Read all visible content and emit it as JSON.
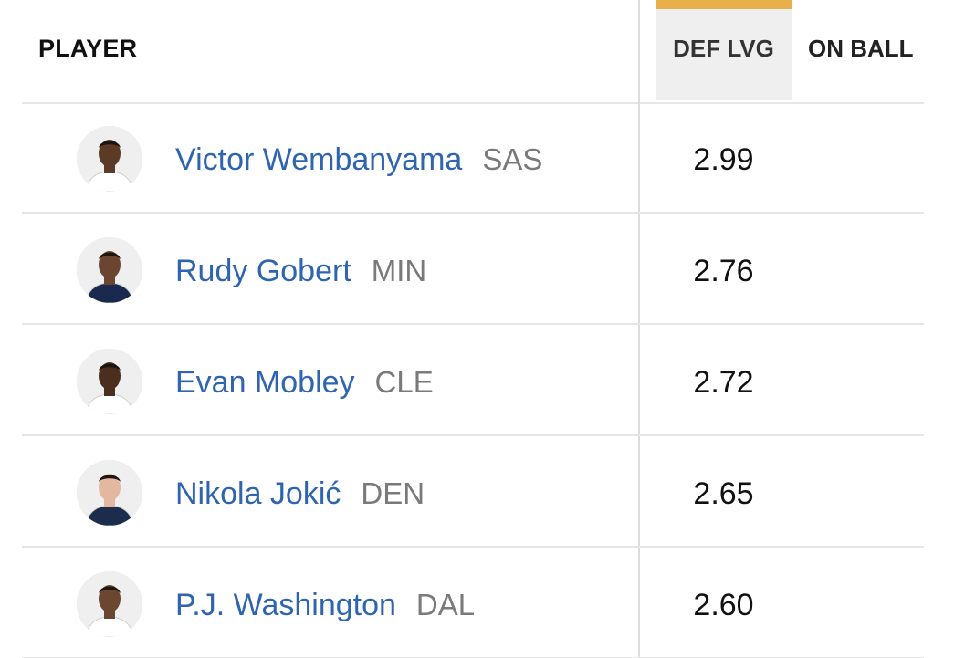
{
  "header": {
    "player": "PLAYER",
    "def_lvg": "DEF LVG",
    "on_ball": "ON BALL"
  },
  "colors": {
    "accent": "#e8b04a",
    "link": "#2f65b0",
    "team": "#7a7a7a"
  },
  "rows": [
    {
      "name": "Victor Wembanyama",
      "team": "SAS",
      "def_lvg": "2.99",
      "jersey": "#ffffff",
      "skin": "#5b3a26"
    },
    {
      "name": "Rudy Gobert",
      "team": "MIN",
      "def_lvg": "2.76",
      "jersey": "#1a2a4f",
      "skin": "#6a4530"
    },
    {
      "name": "Evan Mobley",
      "team": "CLE",
      "def_lvg": "2.72",
      "jersey": "#ffffff",
      "skin": "#4a2e1e"
    },
    {
      "name": "Nikola Jokić",
      "team": "DEN",
      "def_lvg": "2.65",
      "jersey": "#1d2b4c",
      "skin": "#e3b8a0"
    },
    {
      "name": "P.J. Washington",
      "team": "DAL",
      "def_lvg": "2.60",
      "jersey": "#ffffff",
      "skin": "#6b4631"
    }
  ]
}
